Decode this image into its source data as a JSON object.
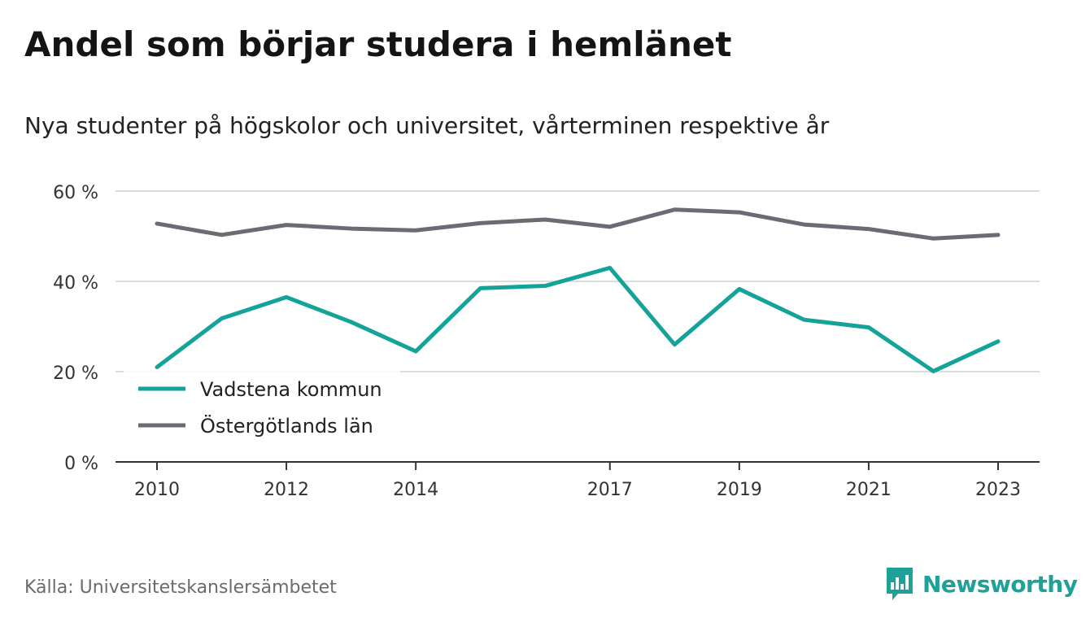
{
  "title": "Andel som börjar studera i hemlänet",
  "subtitle": "Nya studenter på högskolor och universitet, vårterminen respektive år",
  "source": "Källa: Universitetskanslersämbetet",
  "brand": {
    "name": "Newsworthy",
    "color": "#1fa098"
  },
  "colors": {
    "vadstena": "#14a398",
    "ostergotland": "#6c6b74",
    "grid": "#dcdcdc",
    "axis": "#333333"
  },
  "chart_data": {
    "type": "line",
    "x": [
      2010,
      2011,
      2012,
      2013,
      2014,
      2015,
      2016,
      2017,
      2018,
      2019,
      2020,
      2021,
      2022,
      2023
    ],
    "x_tick_labels": [
      "2010",
      "2012",
      "2014",
      "2017",
      "2019",
      "2021",
      "2023"
    ],
    "y_tick_labels": [
      "0 %",
      "20 %",
      "40 %",
      "60 %"
    ],
    "y_ticks": [
      0,
      20,
      40,
      60
    ],
    "ylim": [
      0,
      60
    ],
    "grid": true,
    "legend_position": "bottom-left",
    "series": [
      {
        "name": "Vadstena kommun",
        "color": "#14a398",
        "values": [
          21,
          31.8,
          36.5,
          31,
          24.5,
          38.5,
          39,
          43,
          26,
          38.3,
          31.5,
          29.8,
          20.1,
          26.7
        ]
      },
      {
        "name": "Östergötlands län",
        "color": "#6c6b74",
        "values": [
          52.8,
          50.3,
          52.5,
          51.7,
          51.3,
          52.9,
          53.7,
          52.1,
          55.9,
          55.3,
          52.6,
          51.6,
          49.5,
          50.3
        ]
      }
    ]
  }
}
